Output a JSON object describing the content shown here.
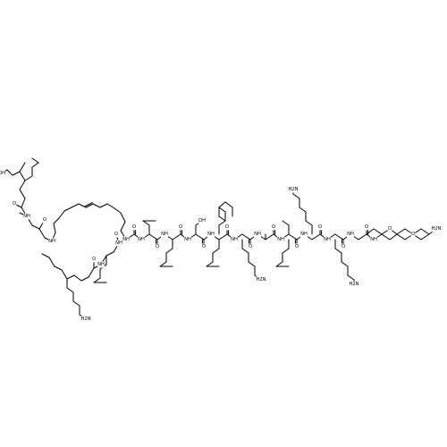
{
  "molecule": {
    "atom_labels": {
      "amine": "NH",
      "carbonyl_oxygen": "O",
      "hydroxyl": "OH",
      "terminal_amine": "NH",
      "h2n": "H2N",
      "ether_oxygen": "O"
    },
    "colors": {
      "bonds": "#000000",
      "labels": "#000000",
      "background": "#ffffff"
    }
  }
}
